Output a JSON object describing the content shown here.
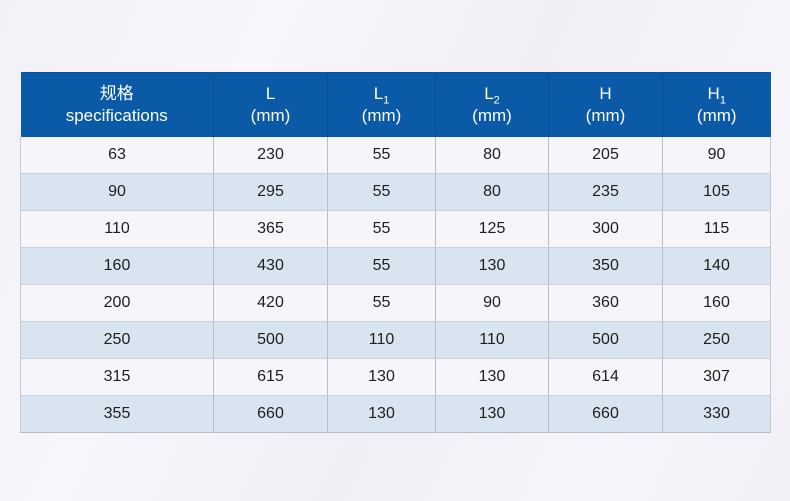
{
  "table": {
    "header": [
      {
        "line1": "规格",
        "sub": "",
        "line2": "specifications"
      },
      {
        "line1": "L",
        "sub": "",
        "line2": "(mm)"
      },
      {
        "line1": "L",
        "sub": "1",
        "line2": "(mm)"
      },
      {
        "line1": "L",
        "sub": "2",
        "line2": "(mm)"
      },
      {
        "line1": "H",
        "sub": "",
        "line2": "(mm)"
      },
      {
        "line1": "H",
        "sub": "1",
        "line2": "(mm)"
      }
    ],
    "rows": [
      [
        "63",
        "230",
        "55",
        "80",
        "205",
        "90"
      ],
      [
        "90",
        "295",
        "55",
        "80",
        "235",
        "105"
      ],
      [
        "110",
        "365",
        "55",
        "125",
        "300",
        "115"
      ],
      [
        "160",
        "430",
        "55",
        "130",
        "350",
        "140"
      ],
      [
        "200",
        "420",
        "55",
        "90",
        "360",
        "160"
      ],
      [
        "250",
        "500",
        "110",
        "110",
        "500",
        "250"
      ],
      [
        "315",
        "615",
        "130",
        "130",
        "614",
        "307"
      ],
      [
        "355",
        "660",
        "130",
        "130",
        "660",
        "330"
      ]
    ],
    "colors": {
      "header_background": "#0a5aa8",
      "header_text": "#ffffff",
      "row_light_background": "#f6f6fa",
      "row_blue_background": "#d9e4f1",
      "grid_line": "#b9bdc5"
    }
  }
}
